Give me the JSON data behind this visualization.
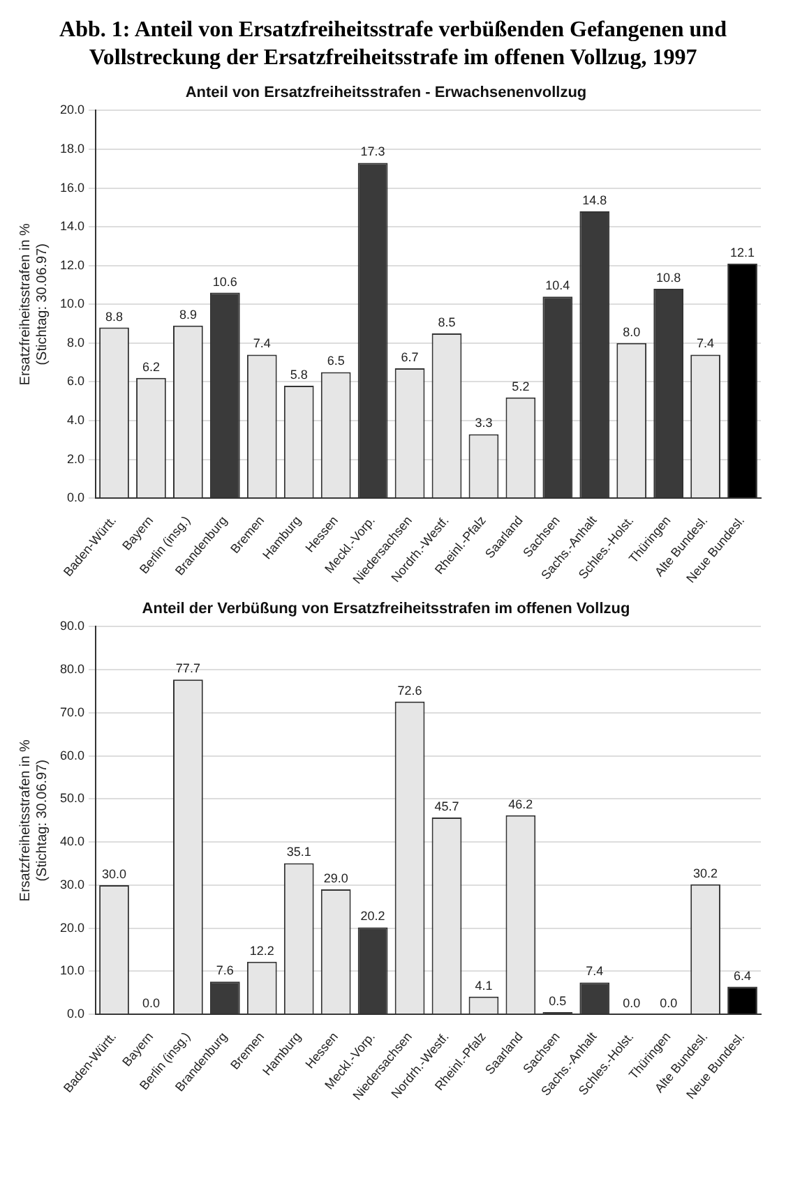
{
  "chart_data": [
    {
      "type": "bar",
      "title": "Abb. 1: Anteil von Ersatzfreiheitsstrafe verbüßenden Gefangenen und Vollstreckung der Ersatzfreiheitsstrafe im offenen Vollzug, 1997",
      "subtitle": "Anteil von Ersatzfreiheitsstrafen - Erwachsenenvollzug",
      "ylabel": "Ersatzfreiheitsstrafen in %\n(Stichtag: 30.06.97)",
      "categories": [
        "Baden-Württ.",
        "Bayern",
        "Berlin (insg.)",
        "Brandenburg",
        "Bremen",
        "Hamburg",
        "Hessen",
        "Meckl.-Vorp.",
        "Niedersachsen",
        "Nordrh.-Westf.",
        "Rheinl.-Pfalz",
        "Saarland",
        "Sachsen",
        "Sachs.-Anhalt",
        "Schles.-Holst.",
        "Thüringen",
        "Alte Bundesl.",
        "Neue Bundesl."
      ],
      "values": [
        8.8,
        6.2,
        8.9,
        10.6,
        7.4,
        5.8,
        6.5,
        17.3,
        6.7,
        8.5,
        3.3,
        5.2,
        10.4,
        14.8,
        8.0,
        10.8,
        7.4,
        12.1
      ],
      "value_labels": [
        "8.8",
        "6.2",
        "8.9",
        "10.6",
        "7.4",
        "5.8",
        "6.5",
        "17.3",
        "6.7",
        "8.5",
        "3.3",
        "5.2",
        "10.4",
        "14.8",
        "8.0",
        "10.8",
        "7.4",
        "12.1"
      ],
      "colors": [
        "#e6e6e6",
        "#e6e6e6",
        "#e6e6e6",
        "#3a3a3a",
        "#e6e6e6",
        "#e6e6e6",
        "#e6e6e6",
        "#3a3a3a",
        "#e6e6e6",
        "#e6e6e6",
        "#e6e6e6",
        "#e6e6e6",
        "#3a3a3a",
        "#3a3a3a",
        "#e6e6e6",
        "#3a3a3a",
        "#e6e6e6",
        "#000000"
      ],
      "ylim": [
        0,
        20
      ],
      "yticks": [
        {
          "value": 0,
          "label": "0.0"
        },
        {
          "value": 2,
          "label": "2.0"
        },
        {
          "value": 4,
          "label": "4.0"
        },
        {
          "value": 6,
          "label": "6.0"
        },
        {
          "value": 8,
          "label": "8.0"
        },
        {
          "value": 10,
          "label": "10.0"
        },
        {
          "value": 12,
          "label": "12.0"
        },
        {
          "value": 14,
          "label": "14.0"
        },
        {
          "value": 16,
          "label": "16.0"
        },
        {
          "value": 18,
          "label": "18.0"
        },
        {
          "value": 20,
          "label": "20.0"
        }
      ],
      "grid": "y",
      "legend": false
    },
    {
      "type": "bar",
      "title": "Anteil der Verbüßung von Ersatzfreiheitsstrafen im offenen Vollzug",
      "ylabel": "Ersatzfreiheitsstrafen in %\n(Stichtag: 30.06.97)",
      "categories": [
        "Baden-Württ.",
        "Bayern",
        "Berlin (insg.)",
        "Brandenburg",
        "Bremen",
        "Hamburg",
        "Hessen",
        "Meckl.-Vorp.",
        "Niedersachsen",
        "Nordrh.-Westf.",
        "Rheinl.-Pfalz",
        "Saarland",
        "Sachsen",
        "Sachs.-Anhalt",
        "Schles.-Holst.",
        "Thüringen",
        "Alte Bundesl.",
        "Neue Bundesl."
      ],
      "values": [
        30.0,
        0.0,
        77.7,
        7.6,
        12.2,
        35.1,
        29.0,
        20.2,
        72.6,
        45.7,
        4.1,
        46.2,
        0.5,
        7.4,
        0.0,
        0.0,
        30.2,
        6.4
      ],
      "value_labels": [
        "30.0",
        "0.0",
        "77.7",
        "7.6",
        "12.2",
        "35.1",
        "29.0",
        "20.2",
        "72.6",
        "45.7",
        "4.1",
        "46.2",
        "0.5",
        "7.4",
        "0.0",
        "0.0",
        "30.2",
        "6.4"
      ],
      "colors": [
        "#e6e6e6",
        "#e6e6e6",
        "#e6e6e6",
        "#3a3a3a",
        "#e6e6e6",
        "#e6e6e6",
        "#e6e6e6",
        "#3a3a3a",
        "#e6e6e6",
        "#e6e6e6",
        "#e6e6e6",
        "#e6e6e6",
        "#3a3a3a",
        "#3a3a3a",
        "#e6e6e6",
        "#3a3a3a",
        "#e6e6e6",
        "#000000"
      ],
      "ylim": [
        0,
        90
      ],
      "yticks": [
        {
          "value": 0,
          "label": "0.0"
        },
        {
          "value": 10,
          "label": "10.0"
        },
        {
          "value": 20,
          "label": "20.0"
        },
        {
          "value": 30,
          "label": "30.0"
        },
        {
          "value": 40,
          "label": "40.0"
        },
        {
          "value": 50,
          "label": "50.0"
        },
        {
          "value": 60,
          "label": "60.0"
        },
        {
          "value": 70,
          "label": "70.0"
        },
        {
          "value": 80,
          "label": "80.0"
        },
        {
          "value": 90,
          "label": "90.0"
        }
      ],
      "grid": "y",
      "legend": false
    }
  ]
}
